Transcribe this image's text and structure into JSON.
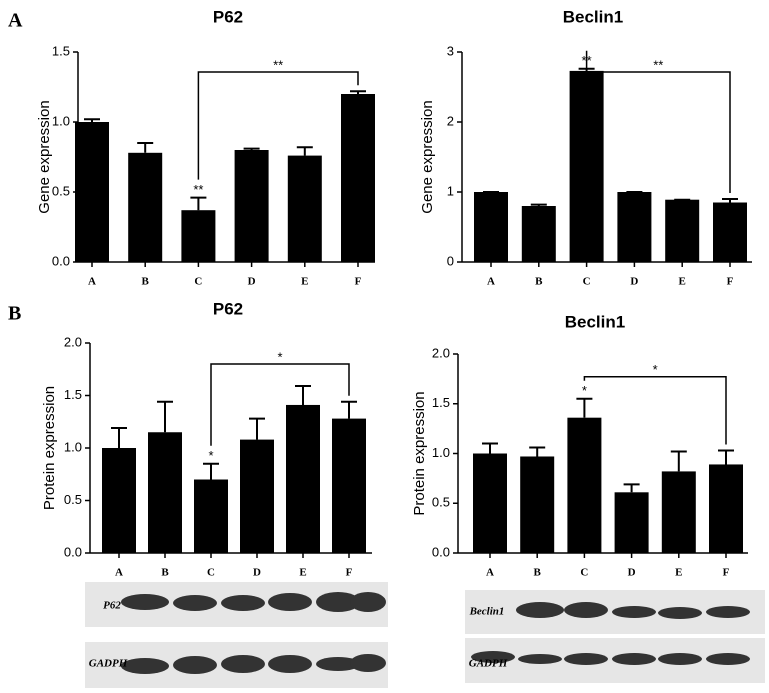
{
  "panels": [
    "A",
    "B"
  ],
  "blots": [
    "P62",
    "GADPH",
    "Beclin1",
    "GADPH"
  ],
  "chart_data": [
    {
      "type": "bar",
      "title": "P62",
      "y_label": "Gene expression",
      "color": "#000000",
      "categories": [
        "A",
        "B",
        "C",
        "D",
        "E",
        "F"
      ],
      "values": [
        1.0,
        0.78,
        0.37,
        0.8,
        0.76,
        1.2
      ],
      "errors": [
        0.02,
        0.07,
        0.09,
        0.01,
        0.06,
        0.02
      ],
      "ylim": [
        0,
        1.5
      ],
      "yticks": [
        {
          "value": 0,
          "label": "0.0"
        },
        0.5,
        {
          "value": 1,
          "label": "1.0"
        },
        1.5
      ],
      "annotations": [
        {
          "label": "**",
          "category": "C"
        }
      ],
      "brackets": [
        {
          "label": "**",
          "from": "C",
          "to": "F"
        }
      ]
    },
    {
      "type": "bar",
      "title": "Beclin1",
      "y_label": "Gene expression",
      "color": "#000000",
      "categories": [
        "A",
        "B",
        "C",
        "D",
        "E",
        "F"
      ],
      "values": [
        1.0,
        0.8,
        2.73,
        1.0,
        0.89,
        0.85
      ],
      "errors": [
        0.0,
        0.02,
        0.03,
        0.0,
        0.0,
        0.05
      ],
      "ylim": [
        0,
        3
      ],
      "yticks": [
        0,
        1,
        2,
        3
      ],
      "annotations": [
        {
          "label": "**",
          "category": "C"
        }
      ],
      "brackets": [
        {
          "label": "**",
          "from": "C",
          "to": "F"
        }
      ]
    },
    {
      "type": "bar",
      "title": "P62",
      "y_label": "Protein expression",
      "color": "#000000",
      "categories": [
        "A",
        "B",
        "C",
        "D",
        "E",
        "F"
      ],
      "values": [
        1.0,
        1.15,
        0.7,
        1.08,
        1.41,
        1.28
      ],
      "errors": [
        0.19,
        0.29,
        0.15,
        0.2,
        0.18,
        0.16
      ],
      "ylim": [
        0,
        2
      ],
      "yticks": [
        {
          "value": 0,
          "label": "0.0"
        },
        0.5,
        {
          "value": 1,
          "label": "1.0"
        },
        1.5,
        {
          "value": 2,
          "label": "2.0"
        }
      ],
      "annotations": [
        {
          "label": "*",
          "category": "C"
        }
      ],
      "brackets": [
        {
          "label": "*",
          "from": "C",
          "to": "F"
        }
      ]
    },
    {
      "type": "bar",
      "title": "Beclin1",
      "y_label": "Protein expression",
      "color": "#000000",
      "categories": [
        "A",
        "B",
        "C",
        "D",
        "E",
        "F"
      ],
      "values": [
        1.0,
        0.97,
        1.36,
        0.61,
        0.82,
        0.89
      ],
      "errors": [
        0.1,
        0.09,
        0.19,
        0.08,
        0.2,
        0.14
      ],
      "ylim": [
        0,
        2
      ],
      "yticks": [
        {
          "value": 0,
          "label": "0.0"
        },
        0.5,
        {
          "value": 1,
          "label": "1.0"
        },
        1.5,
        {
          "value": 2,
          "label": "2.0"
        }
      ],
      "annotations": [
        {
          "label": "*",
          "category": "C"
        }
      ],
      "brackets": [
        {
          "label": "*",
          "from": "C",
          "to": "F"
        }
      ]
    }
  ]
}
